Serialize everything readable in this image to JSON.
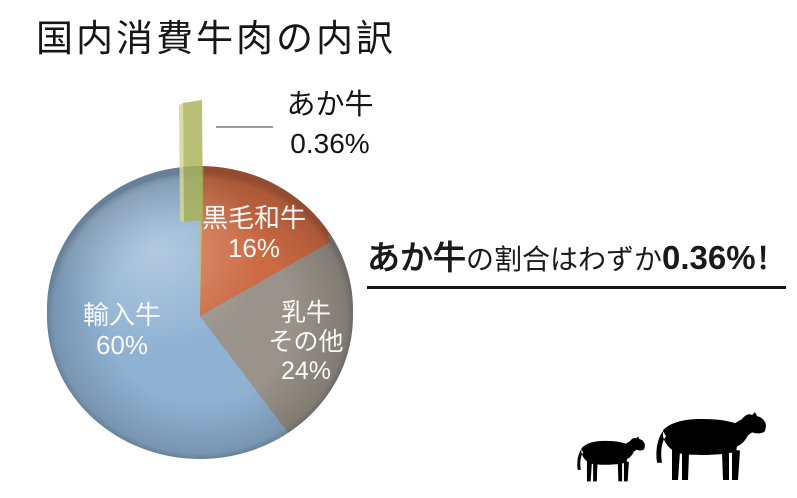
{
  "title": "国内消費牛肉の内訳",
  "chart_data": {
    "type": "pie",
    "title": "国内消費牛肉の内訳",
    "unit": "%",
    "direction": "clockwise",
    "start_angle": "12-oclock",
    "style": "3d-exploded",
    "slices": [
      {
        "label": "あか牛",
        "value": 0.36,
        "display": "0.36%",
        "color": "#aab157",
        "exploded": true
      },
      {
        "label": "黒毛和牛",
        "value": 16,
        "display": "16%",
        "color": "#cc6a43",
        "exploded": false
      },
      {
        "label": "乳牛 その他",
        "value": 24,
        "display": "24%",
        "color": "#9a938b",
        "exploded": false
      },
      {
        "label": "輸入牛",
        "value": 60,
        "display": "60%",
        "color": "#8fb2d3",
        "exploded": false
      }
    ],
    "label_text_color": "#ffffff"
  },
  "callout": {
    "line1": "あか牛",
    "line2": "0.36%"
  },
  "slice_labels": {
    "kuroge": {
      "name": "黒毛和牛",
      "pct": "16%"
    },
    "dairy": {
      "name_line1": "乳牛",
      "name_line2": "その他",
      "pct": "24%"
    },
    "imported": {
      "name": "輸入牛",
      "pct": "60%"
    }
  },
  "statement": {
    "lead": "あか牛",
    "middle": "の割合はわずか",
    "highlight": "0.36%",
    "suffix": "！",
    "highlight_color": "#df3827"
  },
  "icons": [
    {
      "name": "calf-icon"
    },
    {
      "name": "cow-icon"
    }
  ]
}
